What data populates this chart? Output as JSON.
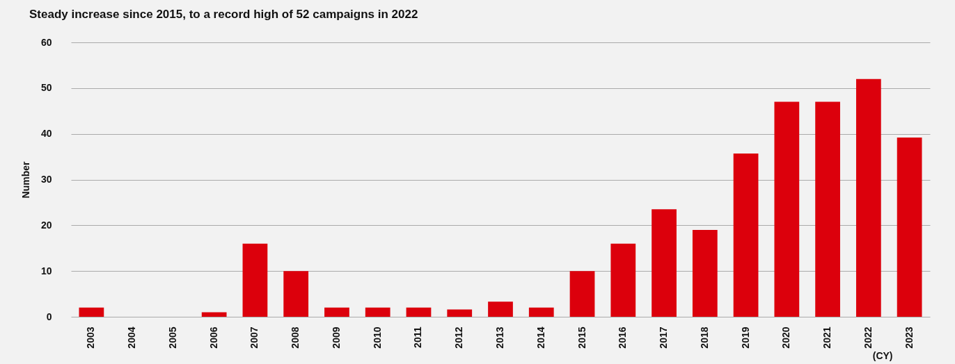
{
  "chart_data": {
    "type": "bar",
    "title": "Steady increase since 2015, to a record high of 52 campaigns in 2022",
    "xlabel": "(CY)",
    "ylabel": "Number",
    "categories": [
      "2003",
      "2004",
      "2005",
      "2006",
      "2007",
      "2008",
      "2009",
      "2010",
      "2011",
      "2012",
      "2013",
      "2014",
      "2015",
      "2016",
      "2017",
      "2018",
      "2019",
      "2020",
      "2021",
      "2022",
      "2023"
    ],
    "values": [
      2,
      0,
      0,
      1,
      16,
      10,
      2,
      2,
      2,
      1.6,
      3.3,
      2,
      10,
      16,
      23.5,
      19,
      35.7,
      47,
      47,
      52,
      39.2
    ],
    "color": "#dc000c",
    "ylim": [
      0,
      60
    ],
    "yticks": [
      0,
      10,
      20,
      30,
      40,
      50,
      60
    ],
    "grid": "y"
  }
}
